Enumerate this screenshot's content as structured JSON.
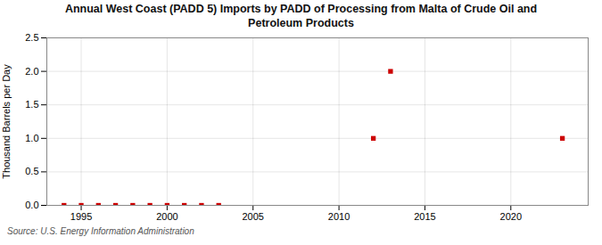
{
  "chart_data": {
    "type": "scatter",
    "title": "Annual West Coast (PADD 5) Imports by PADD of Processing from Malta of Crude Oil and\nPetroleum Products",
    "ylabel": "Thousand Barrels per Day",
    "source": "Source: U.S. Energy Information Administration",
    "x": [
      1994,
      1995,
      1996,
      1997,
      1998,
      1999,
      2000,
      2001,
      2002,
      2003,
      2012,
      2013,
      2023
    ],
    "values": [
      0.0,
      0.0,
      0.0,
      0.0,
      0.0,
      0.0,
      0.0,
      0.0,
      0.0,
      0.0,
      1.0,
      2.0,
      1.0
    ],
    "color": "#cc0000",
    "marker": "square",
    "xlim": [
      1993,
      2024.5
    ],
    "ylim": [
      0.0,
      2.5
    ],
    "xticks": [
      1995,
      2000,
      2005,
      2010,
      2015,
      2020
    ],
    "yticks": [
      {
        "value": 0,
        "label": "0.0"
      },
      0.5,
      {
        "value": 1,
        "label": "1.0"
      },
      1.5,
      {
        "value": 2,
        "label": "2.0"
      },
      2.5
    ],
    "grid": true
  }
}
